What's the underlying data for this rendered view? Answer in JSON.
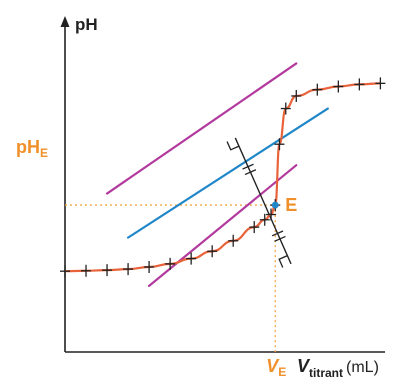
{
  "chart_data": {
    "type": "line",
    "title": "",
    "ylabel": "pH",
    "xlabel_main": "V",
    "xlabel_sub": "titrant",
    "xlabel_unit": "(mL)",
    "equivalence": {
      "point_label": "E",
      "y_label_main": "pH",
      "y_label_sub": "E",
      "x_label_main": "V",
      "x_label_sub": "E",
      "V": 10,
      "pH": 7
    },
    "xlim": [
      0,
      15.6
    ],
    "ylim": [
      0,
      16.2
    ],
    "grid": false,
    "legend": "none",
    "series": [
      {
        "role": "titration-curve",
        "x": [
          0,
          1,
          2,
          3,
          4,
          5,
          6,
          7,
          8,
          9,
          9.5,
          9.8,
          10,
          10.2,
          10.5,
          11,
          12,
          13,
          14,
          15
        ],
        "y": [
          3.85,
          3.87,
          3.9,
          3.95,
          4.05,
          4.2,
          4.45,
          4.8,
          5.3,
          5.95,
          6.3,
          6.55,
          7.0,
          9.9,
          11.6,
          12.2,
          12.5,
          12.65,
          12.75,
          12.8
        ]
      }
    ],
    "tangent_lines": [
      {
        "role": "lower-tangent",
        "from": [
          4,
          3.15
        ],
        "to": [
          11,
          8.9
        ]
      },
      {
        "role": "upper-tangent",
        "from": [
          2,
          7.55
        ],
        "to": [
          11,
          13.75
        ]
      },
      {
        "role": "middle-parallel",
        "from": [
          3,
          5.45
        ],
        "to": [
          12.5,
          11.6
        ]
      }
    ],
    "perpendicular": {
      "from": [
        8.1,
        10.2
      ],
      "to": [
        10.75,
        4.2
      ]
    },
    "colors": {
      "curve": "#e8623a",
      "tangent": "#b23a9e",
      "middle": "#1f86c8",
      "guide": "#f5a64a",
      "accent_text": "#f0902a",
      "axis": "#222222"
    }
  }
}
